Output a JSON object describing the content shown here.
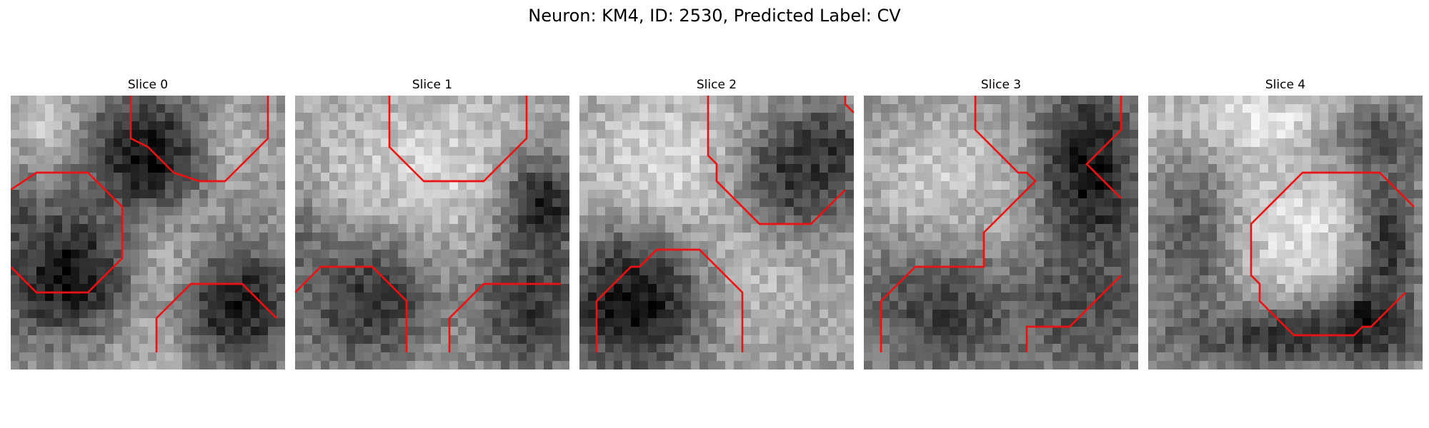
{
  "figure": {
    "title": "Neuron: KM4, ID: 2530, Predicted Label: CV"
  },
  "panels": [
    {
      "title": "Slice 0",
      "dark_blobs": [
        [
          0.5,
          0.22,
          0.24,
          0.25,
          0.05
        ],
        [
          0.2,
          0.65,
          0.27,
          0.24,
          0.05
        ],
        [
          0.82,
          0.77,
          0.22,
          0.24,
          0.1
        ],
        [
          0.03,
          0.5,
          0.08,
          0.2,
          0.3
        ]
      ],
      "light_blobs": [
        [
          0.55,
          0.58,
          0.22,
          0.45,
          0.95
        ],
        [
          0.15,
          0.12,
          0.15,
          0.12,
          0.85
        ],
        [
          0.78,
          0.2,
          0.12,
          0.15,
          0.85
        ]
      ],
      "bg": 0.6,
      "contours": [
        [
          [
            14,
            0
          ],
          [
            14,
            5
          ],
          [
            16,
            6
          ],
          [
            19,
            9
          ],
          [
            22,
            10
          ],
          [
            25,
            10
          ],
          [
            30,
            5
          ],
          [
            30,
            0
          ]
        ],
        [
          [
            0,
            11
          ],
          [
            3,
            9
          ],
          [
            9,
            9
          ],
          [
            13,
            13
          ],
          [
            13,
            19
          ],
          [
            9,
            23
          ],
          [
            3,
            23
          ],
          [
            0,
            20
          ]
        ],
        [
          [
            17,
            30
          ],
          [
            17,
            26
          ],
          [
            21,
            22
          ],
          [
            27,
            22
          ],
          [
            31,
            26
          ]
        ]
      ]
    },
    {
      "title": "Slice 1",
      "dark_blobs": [
        [
          0.28,
          0.75,
          0.3,
          0.25,
          0.2
        ],
        [
          0.86,
          0.78,
          0.2,
          0.25,
          0.2
        ],
        [
          0.9,
          0.4,
          0.15,
          0.2,
          0.12
        ],
        [
          0.02,
          0.55,
          0.1,
          0.2,
          0.4
        ]
      ],
      "light_blobs": [
        [
          0.5,
          0.3,
          0.45,
          0.3,
          0.85
        ],
        [
          0.5,
          0.7,
          0.2,
          0.3,
          0.8
        ]
      ],
      "bg": 0.62,
      "contours": [
        [
          [
            11,
            0
          ],
          [
            11,
            6
          ],
          [
            15,
            10
          ],
          [
            22,
            10
          ],
          [
            27,
            5
          ],
          [
            27,
            0
          ]
        ],
        [
          [
            0,
            23
          ],
          [
            3,
            20
          ],
          [
            9,
            20
          ],
          [
            13,
            24
          ],
          [
            13,
            30
          ]
        ],
        [
          [
            18,
            30
          ],
          [
            18,
            26
          ],
          [
            22,
            22
          ],
          [
            31,
            22
          ]
        ]
      ]
    },
    {
      "title": "Slice 2",
      "dark_blobs": [
        [
          0.2,
          0.75,
          0.28,
          0.27,
          0.05
        ],
        [
          0.78,
          0.3,
          0.22,
          0.22,
          0.2
        ],
        [
          0.9,
          0.2,
          0.15,
          0.15,
          0.2
        ]
      ],
      "light_blobs": [
        [
          0.35,
          0.3,
          0.35,
          0.3,
          0.88
        ],
        [
          0.55,
          0.6,
          0.25,
          0.3,
          0.82
        ]
      ],
      "bg": 0.62,
      "contours": [
        [
          [
            15,
            0
          ],
          [
            15,
            7
          ],
          [
            16,
            8
          ],
          [
            16,
            10
          ],
          [
            21,
            15
          ],
          [
            27,
            15
          ],
          [
            31,
            11
          ]
        ],
        [
          [
            31,
            0
          ],
          [
            31,
            1
          ],
          [
            32,
            2
          ]
        ],
        [
          [
            2,
            30
          ],
          [
            2,
            24
          ],
          [
            6,
            20
          ],
          [
            7,
            20
          ],
          [
            9,
            18
          ],
          [
            14,
            18
          ],
          [
            19,
            23
          ],
          [
            19,
            30
          ]
        ]
      ]
    },
    {
      "title": "Slice 3",
      "dark_blobs": [
        [
          0.82,
          0.3,
          0.18,
          0.35,
          0.05
        ],
        [
          0.8,
          0.75,
          0.25,
          0.25,
          0.3
        ],
        [
          0.3,
          0.78,
          0.3,
          0.22,
          0.25
        ]
      ],
      "light_blobs": [
        [
          0.3,
          0.3,
          0.3,
          0.25,
          0.8
        ],
        [
          0.55,
          0.55,
          0.2,
          0.25,
          0.75
        ]
      ],
      "bg": 0.55,
      "contours": [
        [
          [
            13,
            0
          ],
          [
            13,
            4
          ],
          [
            18,
            9
          ],
          [
            19,
            9
          ],
          [
            20,
            10
          ],
          [
            14,
            16
          ],
          [
            14,
            20
          ],
          [
            6,
            20
          ],
          [
            2,
            24
          ],
          [
            2,
            30
          ]
        ],
        [
          [
            30,
            0
          ],
          [
            30,
            4
          ],
          [
            26,
            8
          ],
          [
            30,
            12
          ]
        ],
        [
          [
            19,
            30
          ],
          [
            19,
            27
          ],
          [
            24,
            27
          ],
          [
            30,
            21
          ]
        ]
      ]
    },
    {
      "title": "Slice 4",
      "dark_blobs": [
        [
          0.5,
          0.88,
          0.45,
          0.12,
          0.2
        ],
        [
          0.88,
          0.55,
          0.12,
          0.35,
          0.2
        ],
        [
          0.15,
          0.55,
          0.15,
          0.35,
          0.35
        ],
        [
          0.85,
          0.15,
          0.2,
          0.12,
          0.3
        ],
        [
          0.78,
          0.82,
          0.12,
          0.12,
          0.1
        ]
      ],
      "light_blobs": [
        [
          0.55,
          0.5,
          0.25,
          0.25,
          0.88
        ],
        [
          0.4,
          0.1,
          0.4,
          0.12,
          0.9
        ]
      ],
      "bg": 0.65,
      "contours": [
        [
          [
            31,
            13
          ],
          [
            27,
            9
          ],
          [
            18,
            9
          ],
          [
            12,
            15
          ],
          [
            12,
            21
          ],
          [
            13,
            22
          ],
          [
            13,
            24
          ],
          [
            17,
            28
          ],
          [
            24,
            28
          ],
          [
            25,
            27
          ],
          [
            26,
            27
          ],
          [
            30,
            23
          ]
        ]
      ]
    }
  ],
  "style": {
    "contour_color": "#ee1111"
  }
}
